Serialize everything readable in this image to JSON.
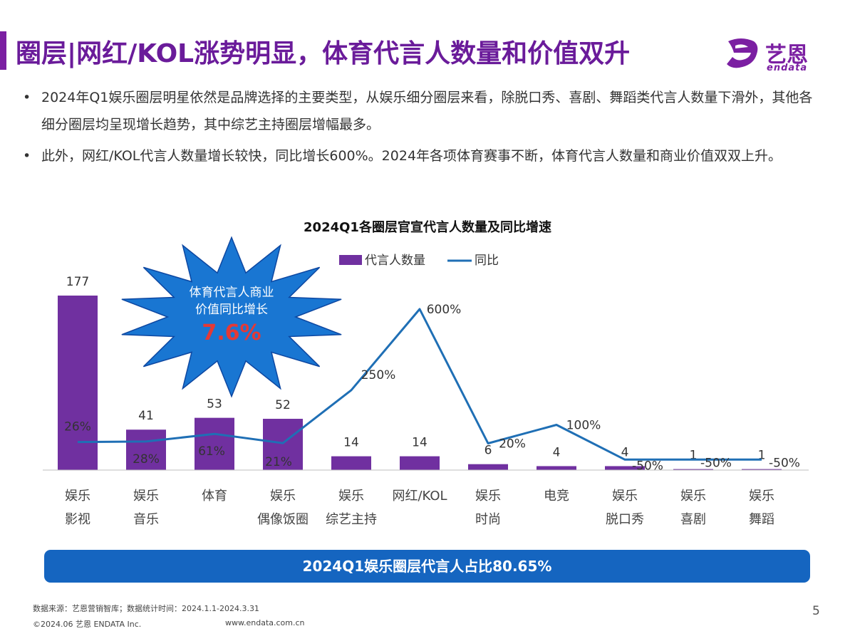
{
  "header": {
    "title": "圈层|网红/KOL涨势明显，体育代言人数量和价值双升",
    "logo_cn": "艺恩",
    "logo_en": "endata"
  },
  "bullets": [
    "2024年Q1娱乐圈层明星依然是品牌选择的主要类型，从娱乐细分圈层来看，除脱口秀、喜剧、舞蹈类代言人数量下滑外，其他各细分圈层均呈现增长趋势，其中综艺主持圈层增幅最多。",
    "此外，网红/KOL代言人数量增长较快，同比增长600%。2024年各项体育赛事不断，体育代言人数量和商业价值双双上升。"
  ],
  "bullet_marker": "•",
  "chart_data": {
    "type": "bar",
    "title": "2024Q1各圈层官宣代言人数量及同比增速",
    "categories": [
      [
        "娱乐",
        "影视"
      ],
      [
        "娱乐",
        "音乐"
      ],
      [
        "体育"
      ],
      [
        "娱乐",
        "偶像饭圈"
      ],
      [
        "娱乐",
        "综艺主持"
      ],
      [
        "网红/KOL"
      ],
      [
        "娱乐",
        "时尚"
      ],
      [
        "电竞"
      ],
      [
        "娱乐",
        "脱口秀"
      ],
      [
        "娱乐",
        "喜剧"
      ],
      [
        "娱乐",
        "舞蹈"
      ]
    ],
    "series": [
      {
        "name": "代言人数量",
        "type": "bar",
        "values": [
          177,
          41,
          53,
          52,
          14,
          14,
          6,
          4,
          4,
          1,
          1
        ],
        "labels": [
          "177",
          "41",
          "53",
          "52",
          "14",
          "14",
          "6",
          "4",
          "4",
          "1",
          "1"
        ]
      },
      {
        "name": "同比",
        "type": "line",
        "values": [
          26,
          28,
          61,
          21,
          250,
          600,
          20,
          100,
          -50,
          -50,
          -50
        ],
        "labels": [
          "26%",
          "28%",
          "61%",
          "21%",
          "250%",
          "600%",
          "20%",
          "100%",
          "-50%",
          "-50%",
          "-50%"
        ]
      }
    ],
    "legend_position": "top",
    "grid": false,
    "callout": {
      "line1": "体育代言人商业",
      "line2": "价值同比增长",
      "value": "7.6%"
    }
  },
  "banner": "2024Q1娱乐圈层代言人占比80.65%",
  "footer": {
    "source": "数据来源：艺恩营销智库；数据统计时间：2024.1.1-2024.3.31",
    "copyright": "©2024.06 艺恩 ENDATA Inc.",
    "website": "www.endata.com.cn",
    "page": "5"
  },
  "colors": {
    "title": "#6a1b9a",
    "accent_bar": "#7b1fa2",
    "bar": "#7030a0",
    "line": "#1f6fb5",
    "banner": "#1565c0",
    "burst": "#1976d2",
    "callout_value": "#e53935",
    "logo": "#7b1fa2"
  }
}
